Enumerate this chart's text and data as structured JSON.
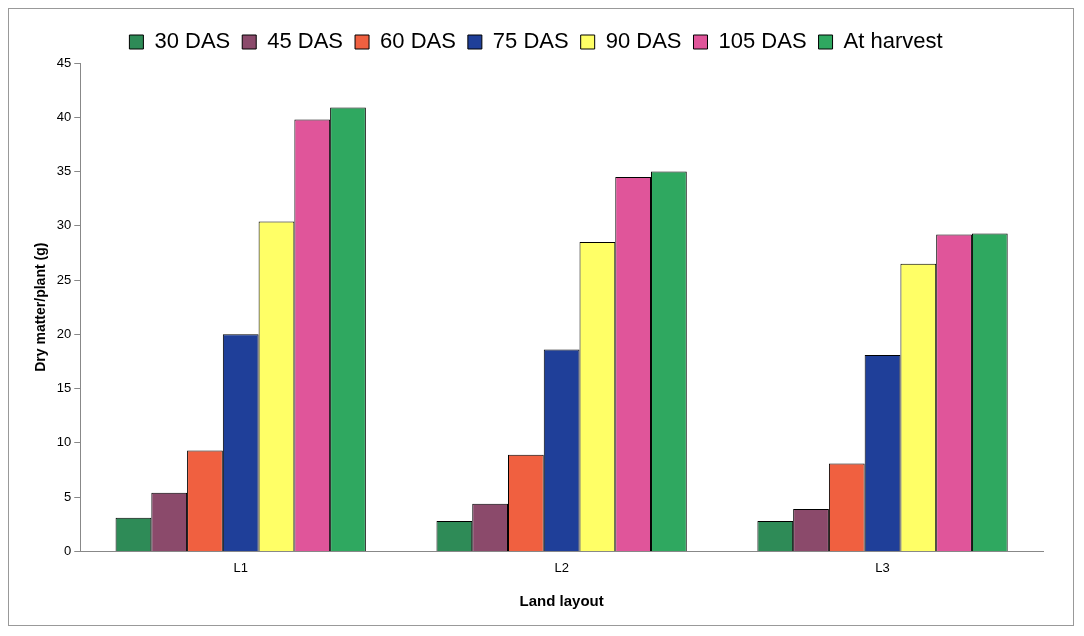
{
  "chart_data": {
    "type": "bar",
    "xlabel": "Land layout",
    "ylabel": "Dry matter/plant (g)",
    "categories": [
      "L1",
      "L2",
      "L3"
    ],
    "series": [
      {
        "name": "30 DAS",
        "color": "#2e8b57",
        "values": [
          3.1,
          2.8,
          2.8
        ]
      },
      {
        "name": "45 DAS",
        "color": "#8b4a6b",
        "values": [
          5.4,
          4.4,
          3.9
        ]
      },
      {
        "name": "60 DAS",
        "color": "#f06040",
        "values": [
          9.3,
          8.9,
          8.1
        ]
      },
      {
        "name": "75 DAS",
        "color": "#1f3f99",
        "values": [
          20.0,
          18.6,
          18.1
        ]
      },
      {
        "name": "90 DAS",
        "color": "#ffff66",
        "values": [
          30.4,
          28.5,
          26.5
        ]
      },
      {
        "name": "105 DAS",
        "color": "#e0559a",
        "values": [
          39.8,
          34.5,
          29.2
        ]
      },
      {
        "name": "At harvest",
        "color": "#2fa860",
        "values": [
          40.9,
          35.0,
          29.3
        ]
      }
    ],
    "ylim": [
      0,
      45
    ],
    "yticks": [
      0,
      5,
      10,
      15,
      20,
      25,
      30,
      35,
      40,
      45
    ],
    "legend": "top"
  }
}
